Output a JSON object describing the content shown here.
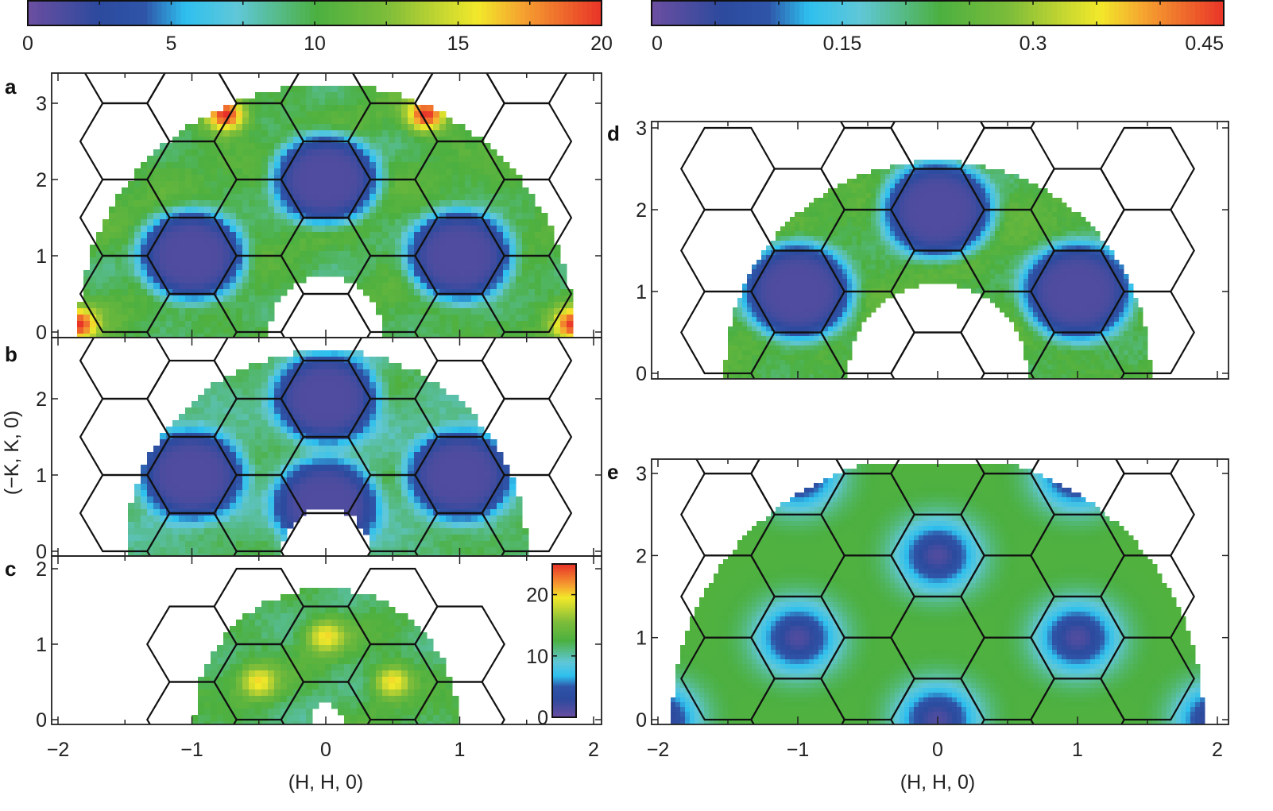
{
  "chart_data": [
    {
      "type": "heatmap",
      "id": "a",
      "panel_label": "a",
      "xlabel": "(H, H, 0)",
      "ylabel": "(−K, K, 0)",
      "xlim": [
        -2.04,
        2.07
      ],
      "ylim": [
        -0.07,
        3.4
      ],
      "yticks": [
        "0",
        "1",
        "2",
        "3"
      ],
      "colorbar": "left",
      "mask": {
        "radius_H": 1.85,
        "hole_radius_H": 0.42
      },
      "background_value": 10,
      "low_spots": [
        [
          0,
          2
        ],
        [
          -1,
          1
        ],
        [
          1,
          1
        ]
      ],
      "high_spots": [
        [
          -0.75,
          2.85
        ],
        [
          0.75,
          2.85
        ],
        [
          -1.85,
          0.1
        ],
        [
          1.85,
          0.1
        ]
      ],
      "high_value": 20
    },
    {
      "type": "heatmap",
      "id": "b",
      "panel_label": "b",
      "xlim": [
        -2.04,
        2.07
      ],
      "ylim": [
        -0.06,
        2.8
      ],
      "yticks": [
        "0",
        "1",
        "2"
      ],
      "colorbar": "left",
      "mask": {
        "radius_H": 1.5,
        "hole_radius_H": 0.32
      },
      "background_value": 9,
      "low_spots": [
        [
          0,
          2
        ],
        [
          -1,
          1
        ],
        [
          1,
          1
        ],
        [
          0,
          0.6
        ]
      ],
      "high_spots": [],
      "high_value": 20
    },
    {
      "type": "heatmap",
      "id": "c",
      "panel_label": "c",
      "xlim": [
        -2.04,
        2.07
      ],
      "ylim": [
        -0.06,
        2.15
      ],
      "yticks": [
        "0",
        "1",
        "2"
      ],
      "xticks": [
        "−2",
        "−1",
        "0",
        "1",
        "2"
      ],
      "xlabel": "(H, H, 0)",
      "colorbar": "inset",
      "inset_colorbar": {
        "range": [
          0,
          25
        ],
        "ticks": [
          "0",
          "10",
          "20"
        ]
      },
      "mask": {
        "radius_H": 0.98,
        "hole_radius_H": 0.12
      },
      "background_value": 12,
      "low_spots": [],
      "high_spots": [
        [
          0,
          1.1
        ],
        [
          -0.5,
          0.5
        ],
        [
          0.5,
          0.5
        ]
      ],
      "high_value": 20
    },
    {
      "type": "heatmap",
      "id": "d",
      "panel_label": "d",
      "xlim": [
        -2.04,
        2.08
      ],
      "ylim": [
        -0.07,
        3.07
      ],
      "yticks": [
        "0",
        "1",
        "2",
        "3"
      ],
      "colorbar": "right",
      "mask": {
        "radius_H": 1.52,
        "hole_radius_H": 0.64
      },
      "background_value": 0.23,
      "low_spots": [
        [
          0,
          2
        ],
        [
          -1,
          1
        ],
        [
          1,
          1
        ]
      ],
      "high_spots": [],
      "high_value": 0.45
    },
    {
      "type": "heatmap",
      "id": "e",
      "panel_label": "e",
      "xlim": [
        -2.04,
        2.08
      ],
      "ylim": [
        -0.06,
        3.18
      ],
      "yticks": [
        "0",
        "1",
        "2",
        "3"
      ],
      "xticks": [
        "−2",
        "−1",
        "0",
        "1",
        "2"
      ],
      "xlabel": "(H, H, 0)",
      "colorbar": "right",
      "mask": {
        "radius_H": 1.9,
        "hole_radius_H": 0,
        "top_K": 3.1
      },
      "background_value": 0.23,
      "low_spots": [
        [
          0,
          2
        ],
        [
          -1,
          1
        ],
        [
          1,
          1
        ],
        [
          0,
          0
        ],
        [
          -2,
          0
        ],
        [
          2,
          0
        ],
        [
          -1,
          3
        ],
        [
          1,
          3
        ]
      ],
      "high_spots": [],
      "high_value": 0.45
    }
  ],
  "colorbars": {
    "left": {
      "range": [
        0,
        20
      ],
      "ticks": [
        "0",
        "5",
        "10",
        "15",
        "20"
      ]
    },
    "right": {
      "range": [
        0,
        0.45
      ],
      "ticks": [
        "0",
        "0.15",
        "0.3",
        "0.45"
      ]
    }
  },
  "colormap": [
    "#6a4ea0",
    "#2c4a9e",
    "#2f55a8",
    "#2ec0ee",
    "#60c7d8",
    "#4cb040",
    "#7cbc3a",
    "#c8d830",
    "#f2e82a",
    "#f5a030",
    "#e83028"
  ]
}
